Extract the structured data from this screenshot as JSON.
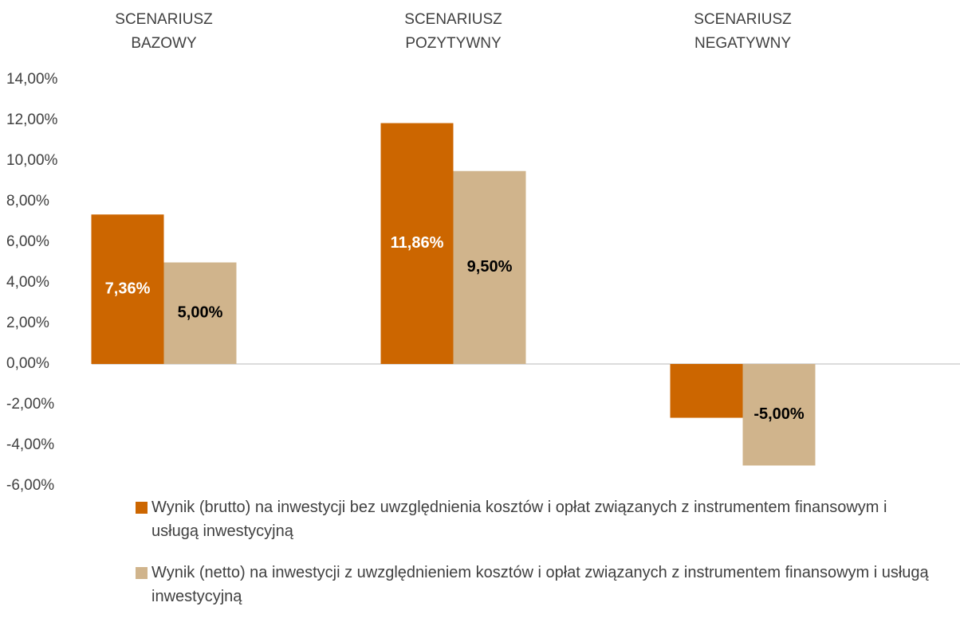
{
  "chart_data": {
    "type": "bar",
    "categories": [
      "SCENARIUSZ BAZOWY",
      "SCENARIUSZ POZYTYWNY",
      "SCENARIUSZ NEGATYWNY"
    ],
    "series": [
      {
        "name": "Wynik (brutto) na inwestycji bez uwzględnienia kosztów i opłat związanych z instrumentem finansowym i usługą inwestycyjną",
        "color": "#cc6600",
        "values": [
          7.36,
          11.86,
          -2.65
        ],
        "value_labels": [
          "7,36%",
          "11,86%",
          null
        ]
      },
      {
        "name": "Wynik (netto) na inwestycji z uwzględnieniem kosztów i opłat związanych z instrumentem finansowym i usługą inwestycyjną",
        "color": "#d0b48c",
        "values": [
          5.0,
          9.5,
          -5.0
        ],
        "value_labels": [
          "5,00%",
          "9,50%",
          "-5,00%"
        ]
      }
    ],
    "ylim": [
      -6,
      14
    ],
    "yticks": [
      {
        "value": -6,
        "label": "-6,00%"
      },
      {
        "value": -4,
        "label": "-4,00%"
      },
      {
        "value": -2,
        "label": "-2,00%"
      },
      {
        "value": 0,
        "label": "0,00%"
      },
      {
        "value": 2,
        "label": "2,00%"
      },
      {
        "value": 4,
        "label": "4,00%"
      },
      {
        "value": 6,
        "label": "6,00%"
      },
      {
        "value": 8,
        "label": "8,00%"
      },
      {
        "value": 10,
        "label": "10,00%"
      },
      {
        "value": 12,
        "label": "12,00%"
      },
      {
        "value": 14,
        "label": "14,00%"
      }
    ],
    "grid": false
  }
}
